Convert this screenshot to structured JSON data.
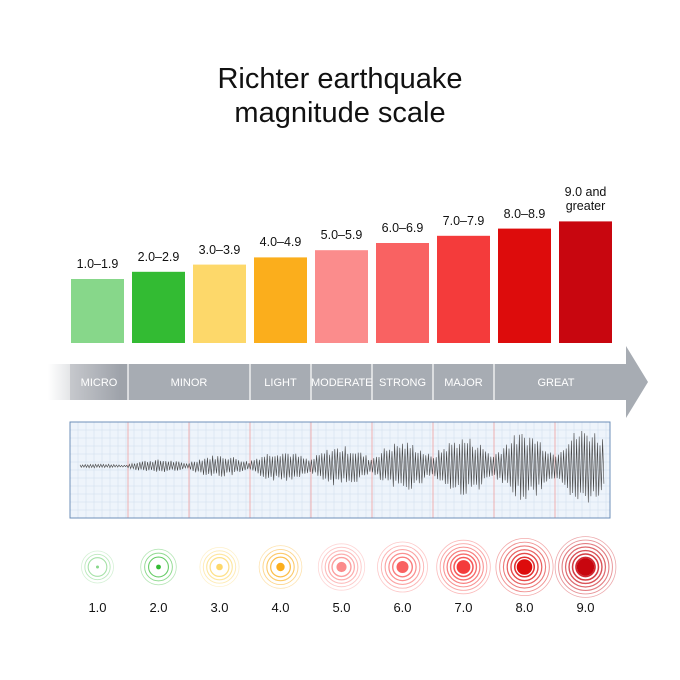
{
  "title": "Richter earthquake\nmagnitude scale",
  "bars": [
    {
      "range": "1.0–1.9",
      "color": "#87d78a",
      "level": 1
    },
    {
      "range": "2.0–2.9",
      "color": "#33bb33",
      "level": 2
    },
    {
      "range": "3.0–3.9",
      "color": "#fdd86a",
      "level": 3
    },
    {
      "range": "4.0–4.9",
      "color": "#fbae1c",
      "level": 4
    },
    {
      "range": "5.0–5.9",
      "color": "#fb8c8c",
      "level": 5
    },
    {
      "range": "6.0–6.9",
      "color": "#f96262",
      "level": 6
    },
    {
      "range": "7.0–7.9",
      "color": "#f43b3b",
      "level": 7
    },
    {
      "range": "8.0–8.9",
      "color": "#dd0c0c",
      "level": 8
    },
    {
      "range": "9.0 and\ngreater",
      "color": "#c8060f",
      "level": 9
    }
  ],
  "categories": [
    {
      "label": "MICRO",
      "from": 1,
      "to": 1
    },
    {
      "label": "MINOR",
      "from": 2,
      "to": 3
    },
    {
      "label": "LIGHT",
      "from": 4,
      "to": 4
    },
    {
      "label": "MODERATE",
      "from": 5,
      "to": 5
    },
    {
      "label": "STRONG",
      "from": 6,
      "to": 6
    },
    {
      "label": "MAJOR",
      "from": 7,
      "to": 7
    },
    {
      "label": "GREAT",
      "from": 8,
      "to": 9
    }
  ],
  "magnitudes": [
    "1.0",
    "2.0",
    "3.0",
    "4.0",
    "5.0",
    "6.0",
    "7.0",
    "8.0",
    "9.0"
  ],
  "colors": {
    "arrow": "#a7acb3",
    "arrow_fade": "#ffffff",
    "grid_minor": "#cfdcec",
    "grid_major": "#f0a0a0",
    "seismo_bg": "#eef4fb",
    "wave": "#444444"
  }
}
